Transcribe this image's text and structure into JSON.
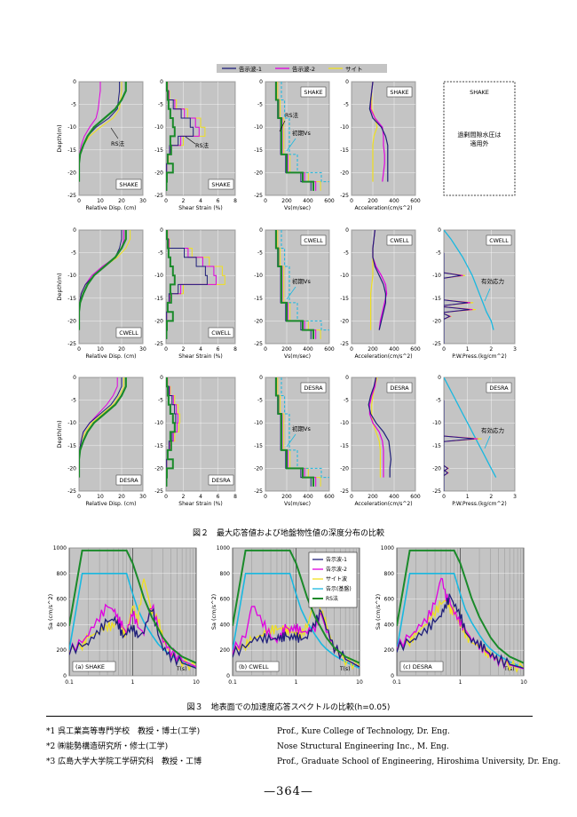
{
  "colors": {
    "series1": "#1f1f7a",
    "series2": "#e000e0",
    "site": "#f0e020",
    "base": "#19b8e0",
    "rs": "#1a8a2a",
    "panel_bg": "#c4c4c4"
  },
  "figure2": {
    "legend": [
      "告示波-1",
      "告示波-2",
      "サイト"
    ],
    "rows": [
      "SHAKE",
      "CWELL",
      "DESRA"
    ],
    "columns": [
      {
        "key": "disp",
        "xlabel": "Relative Disp. (cm)",
        "xticks": [
          "0",
          "10",
          "20",
          "30"
        ],
        "xlim": [
          0,
          30
        ]
      },
      {
        "key": "strain",
        "xlabel": "Shear Strain (%)",
        "xticks": [
          "0",
          "2",
          "4",
          "6",
          "8"
        ],
        "xlim": [
          0,
          8
        ]
      },
      {
        "key": "vs",
        "xlabel": "Vs(m/sec)",
        "xticks": [
          "0",
          "200",
          "400",
          "600"
        ],
        "xlim": [
          0,
          600
        ]
      },
      {
        "key": "acc",
        "xlabel": "Acceleration(cm/s^2)",
        "xticks": [
          "0",
          "200",
          "400",
          "600"
        ],
        "xlim": [
          0,
          600
        ]
      },
      {
        "key": "pwp",
        "xlabel": "P.W.Press.(kg/cm^2)",
        "xticks": [
          "0",
          "1",
          "2",
          "3"
        ],
        "xlim": [
          0,
          3
        ]
      }
    ],
    "ylabel": "Depth(m)",
    "yticks": [
      "0",
      "-5",
      "-10",
      "-15",
      "-20",
      "-25"
    ],
    "ylim": [
      -25,
      0
    ],
    "annotations": {
      "rs": "RS法",
      "initial_vs": "初期Vs",
      "effective_stress": "有効応力",
      "shake_pwp_note": "過剰間隙水圧は\n適用外"
    },
    "caption": "図２　最大応答値および地盤物性値の深度分布の比較"
  },
  "figure3": {
    "panels": [
      {
        "label": "(a) SHAKE"
      },
      {
        "label": "(b) CWELL"
      },
      {
        "label": "(c) DESRA"
      }
    ],
    "legend": [
      "告示波-1",
      "告示波-2",
      "サイト波",
      "告示(基盤)",
      "RS法"
    ],
    "ylabel": "Sa (cm/s^2)",
    "yticks": [
      "0",
      "200",
      "400",
      "600",
      "800",
      "1000"
    ],
    "xticks": [
      "0.1",
      "1",
      "10"
    ],
    "xunit": "T(s)",
    "caption": "図３　地表面での加速度応答スペクトルの比較(h=0.05)"
  },
  "chart_data": [
    {
      "type": "line",
      "title": "図２　最大応答値および地盤物性値の深度分布の比較",
      "note": "depth profiles; y = depth (m), x per column units",
      "depth": [
        0,
        -2,
        -4,
        -6,
        -8,
        -10,
        -12,
        -14,
        -16,
        -18,
        -20,
        -22
      ],
      "SHAKE": {
        "disp": {
          "告示波-1": [
            19,
            19,
            18.5,
            18,
            14,
            8,
            4,
            2,
            0.5,
            0,
            0,
            0
          ],
          "告示波-2": [
            10,
            10,
            9.5,
            9,
            8,
            5,
            2.5,
            1,
            0.3,
            0,
            0,
            0
          ],
          "サイト": [
            20,
            20,
            19.5,
            19,
            16,
            10,
            5,
            2,
            0.5,
            0,
            0,
            0
          ],
          "RS法": [
            22,
            22,
            20,
            17,
            12,
            7,
            4,
            2,
            0.5,
            0,
            0,
            0
          ]
        },
        "vs_rs": [
          100,
          100,
          120,
          120,
          150,
          150,
          150,
          150,
          200,
          200,
          350,
          450
        ],
        "acc": {
          "告示波-1": [
            200,
            190,
            180,
            170,
            200,
            280,
            320,
            340,
            340,
            340,
            340,
            340
          ],
          "告示波-2": [
            200,
            190,
            180,
            180,
            220,
            290,
            300,
            300,
            310,
            310,
            300,
            290
          ],
          "サイト": [
            200,
            190,
            190,
            190,
            220,
            240,
            210,
            200,
            200,
            200,
            200,
            200
          ]
        }
      },
      "CWELL": {
        "disp": {
          "告示波-1": [
            20,
            20,
            19,
            17,
            12,
            7,
            3,
            1,
            0.3,
            0,
            0,
            0
          ],
          "告示波-2": [
            21,
            21,
            20,
            17,
            11,
            6,
            3,
            1,
            0.3,
            0,
            0,
            0
          ],
          "サイト": [
            24,
            24,
            22,
            18,
            12,
            7,
            3,
            1,
            0.3,
            0,
            0,
            0
          ],
          "RS法": [
            22,
            22,
            20,
            17,
            12,
            7,
            4,
            2,
            0.5,
            0,
            0,
            0
          ]
        },
        "acc": {
          "告示波-1": [
            220,
            210,
            200,
            200,
            220,
            260,
            300,
            320,
            320,
            300,
            280,
            260
          ],
          "告示波-2": [
            220,
            210,
            200,
            200,
            230,
            280,
            320,
            330,
            310,
            290,
            270,
            260
          ],
          "サイト": [
            220,
            210,
            200,
            200,
            200,
            200,
            190,
            180,
            180,
            180,
            180,
            180
          ]
        },
        "pwp_effective": [
          0,
          0.3,
          0.55,
          0.8,
          1.0,
          1.2,
          1.35,
          1.5,
          1.65,
          1.8,
          2.0,
          2.1
        ]
      },
      "DESRA": {
        "disp": {
          "告示波-1": [
            20,
            20,
            18,
            15,
            10,
            5,
            2,
            1,
            0.3,
            0,
            0,
            0
          ],
          "告示波-2": [
            18,
            18,
            16,
            13,
            9,
            5,
            2,
            1,
            0.3,
            0,
            0,
            0
          ],
          "サイト": [
            21,
            21,
            19,
            16,
            11,
            6,
            3,
            1,
            0.3,
            0,
            0,
            0
          ],
          "RS法": [
            22,
            22,
            20,
            17,
            12,
            7,
            4,
            2,
            0.5,
            0,
            0,
            0
          ]
        },
        "acc": {
          "告示波-1": [
            230,
            210,
            180,
            160,
            180,
            230,
            300,
            350,
            360,
            370,
            360,
            360
          ],
          "告示波-2": [
            230,
            220,
            190,
            170,
            170,
            200,
            260,
            290,
            300,
            300,
            300,
            300
          ],
          "サイト": [
            240,
            220,
            200,
            190,
            190,
            200,
            230,
            260,
            270,
            270,
            270,
            270
          ]
        },
        "pwp_effective": [
          0,
          0.2,
          0.4,
          0.6,
          0.8,
          1.0,
          1.2,
          1.4,
          1.6,
          1.8,
          2.0,
          2.2
        ]
      }
    },
    {
      "type": "line",
      "title": "図３　地表面での加速度応答スペクトルの比較(h=0.05)",
      "x_log": true,
      "xlim": [
        0.1,
        10
      ],
      "ylim": [
        0,
        1000
      ],
      "x": [
        0.1,
        0.16,
        0.2,
        0.3,
        0.4,
        0.5,
        0.6,
        0.7,
        0.8,
        1.0,
        1.2,
        1.5,
        2.0,
        2.5,
        3.0,
        4.0,
        6.0,
        10.0
      ],
      "RS法": [
        390,
        980,
        980,
        980,
        980,
        980,
        980,
        980,
        980,
        880,
        760,
        610,
        460,
        370,
        300,
        220,
        150,
        100
      ],
      "告示(基盤)": [
        200,
        800,
        800,
        800,
        800,
        800,
        800,
        800,
        800,
        640,
        520,
        420,
        320,
        250,
        210,
        160,
        110,
        60
      ],
      "SHAKE": {
        "告示波-1": [
          200,
          230,
          260,
          360,
          420,
          450,
          400,
          300,
          340,
          380,
          300,
          350,
          540,
          320,
          220,
          150,
          100,
          60
        ],
        "告示波-2": [
          200,
          260,
          330,
          460,
          540,
          520,
          440,
          380,
          340,
          500,
          380,
          340,
          560,
          380,
          280,
          190,
          120,
          70
        ],
        "サイト波": [
          200,
          240,
          300,
          350,
          390,
          380,
          460,
          350,
          320,
          560,
          430,
          760,
          500,
          450,
          280,
          170,
          110,
          60
        ]
      },
      "CWELL": {
        "告示波-1": [
          180,
          220,
          280,
          300,
          280,
          300,
          300,
          310,
          300,
          310,
          280,
          310,
          420,
          500,
          380,
          220,
          130,
          70
        ],
        "告示波-2": [
          200,
          300,
          560,
          420,
          300,
          280,
          330,
          380,
          360,
          380,
          340,
          350,
          380,
          480,
          360,
          220,
          130,
          70
        ],
        "サイト波": [
          200,
          240,
          280,
          330,
          360,
          360,
          380,
          360,
          340,
          340,
          320,
          380,
          620,
          500,
          400,
          210,
          120,
          70
        ]
      },
      "DESRA": {
        "告示波-1": [
          220,
          260,
          300,
          370,
          420,
          480,
          560,
          620,
          560,
          480,
          340,
          280,
          250,
          200,
          170,
          130,
          90,
          60
        ],
        "告示波-2": [
          230,
          300,
          360,
          450,
          560,
          780,
          620,
          560,
          500,
          420,
          360,
          290,
          240,
          190,
          160,
          120,
          85,
          55
        ],
        "サイト波": [
          230,
          270,
          320,
          420,
          500,
          560,
          600,
          520,
          500,
          400,
          330,
          260,
          230,
          190,
          160,
          120,
          85,
          55
        ]
      }
    }
  ],
  "footnotes": [
    {
      "mark": "*1",
      "jp": "呉工業高等専門学校　教授・博士(工学)",
      "en": "Prof., Kure College of Technology, Dr. Eng."
    },
    {
      "mark": "*2",
      "jp": "㈱能勢構造研究所・修士(工学)",
      "en": "Nose Structural Engineering Inc., M. Eng."
    },
    {
      "mark": "*3",
      "jp": "広島大学大学院工学研究科　教授・工博",
      "en": "Prof., Graduate School of Engineering, Hiroshima University, Dr. Eng."
    }
  ],
  "page_number": "—364—"
}
